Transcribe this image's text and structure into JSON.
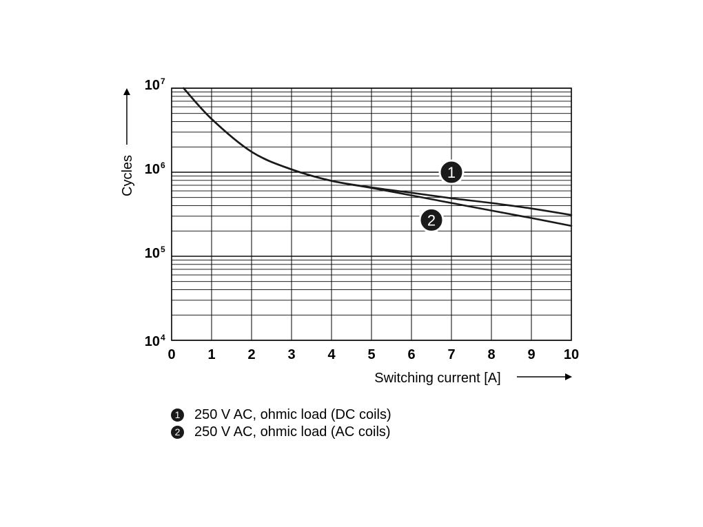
{
  "chart_data": {
    "type": "line",
    "xlabel": "Switching current [A]",
    "ylabel": "Cycles",
    "xlim": [
      0,
      10
    ],
    "ylim": [
      10000,
      10000000
    ],
    "y_scale": "log",
    "grid": true,
    "x_ticks": [
      "0",
      "1",
      "2",
      "3",
      "4",
      "5",
      "6",
      "7",
      "8",
      "9",
      "10"
    ],
    "y_ticks": [
      {
        "base": "10",
        "exp": "4",
        "value": 10000
      },
      {
        "base": "10",
        "exp": "5",
        "value": 100000
      },
      {
        "base": "10",
        "exp": "6",
        "value": 1000000
      },
      {
        "base": "10",
        "exp": "7",
        "value": 10000000
      }
    ],
    "series": [
      {
        "name": "1",
        "points": [
          [
            0.3,
            10000000
          ],
          [
            1.0,
            4300000
          ],
          [
            2.0,
            1750000
          ],
          [
            3.0,
            1080000
          ],
          [
            4.0,
            790000
          ],
          [
            5.0,
            660000
          ],
          [
            6.0,
            570000
          ],
          [
            7.0,
            490000
          ],
          [
            8.0,
            430000
          ],
          [
            9.0,
            370000
          ],
          [
            10.0,
            310000
          ]
        ]
      },
      {
        "name": "2",
        "points": [
          [
            0.3,
            10000000
          ],
          [
            1.0,
            4300000
          ],
          [
            2.0,
            1750000
          ],
          [
            3.0,
            1080000
          ],
          [
            4.0,
            790000
          ],
          [
            5.0,
            650000
          ],
          [
            6.0,
            530000
          ],
          [
            7.0,
            430000
          ],
          [
            8.0,
            350000
          ],
          [
            9.0,
            285000
          ],
          [
            10.0,
            230000
          ]
        ]
      }
    ],
    "markers": [
      {
        "label": "1",
        "x": 7.0,
        "y": 1000000
      },
      {
        "label": "2",
        "x": 6.5,
        "y": 270000
      }
    ],
    "legend": [
      {
        "badge": "1",
        "text": "250 V AC, ohmic load (DC coils)"
      },
      {
        "badge": "2",
        "text": "250 V AC, ohmic load (AC coils)"
      }
    ],
    "legend_position": "bottom"
  }
}
